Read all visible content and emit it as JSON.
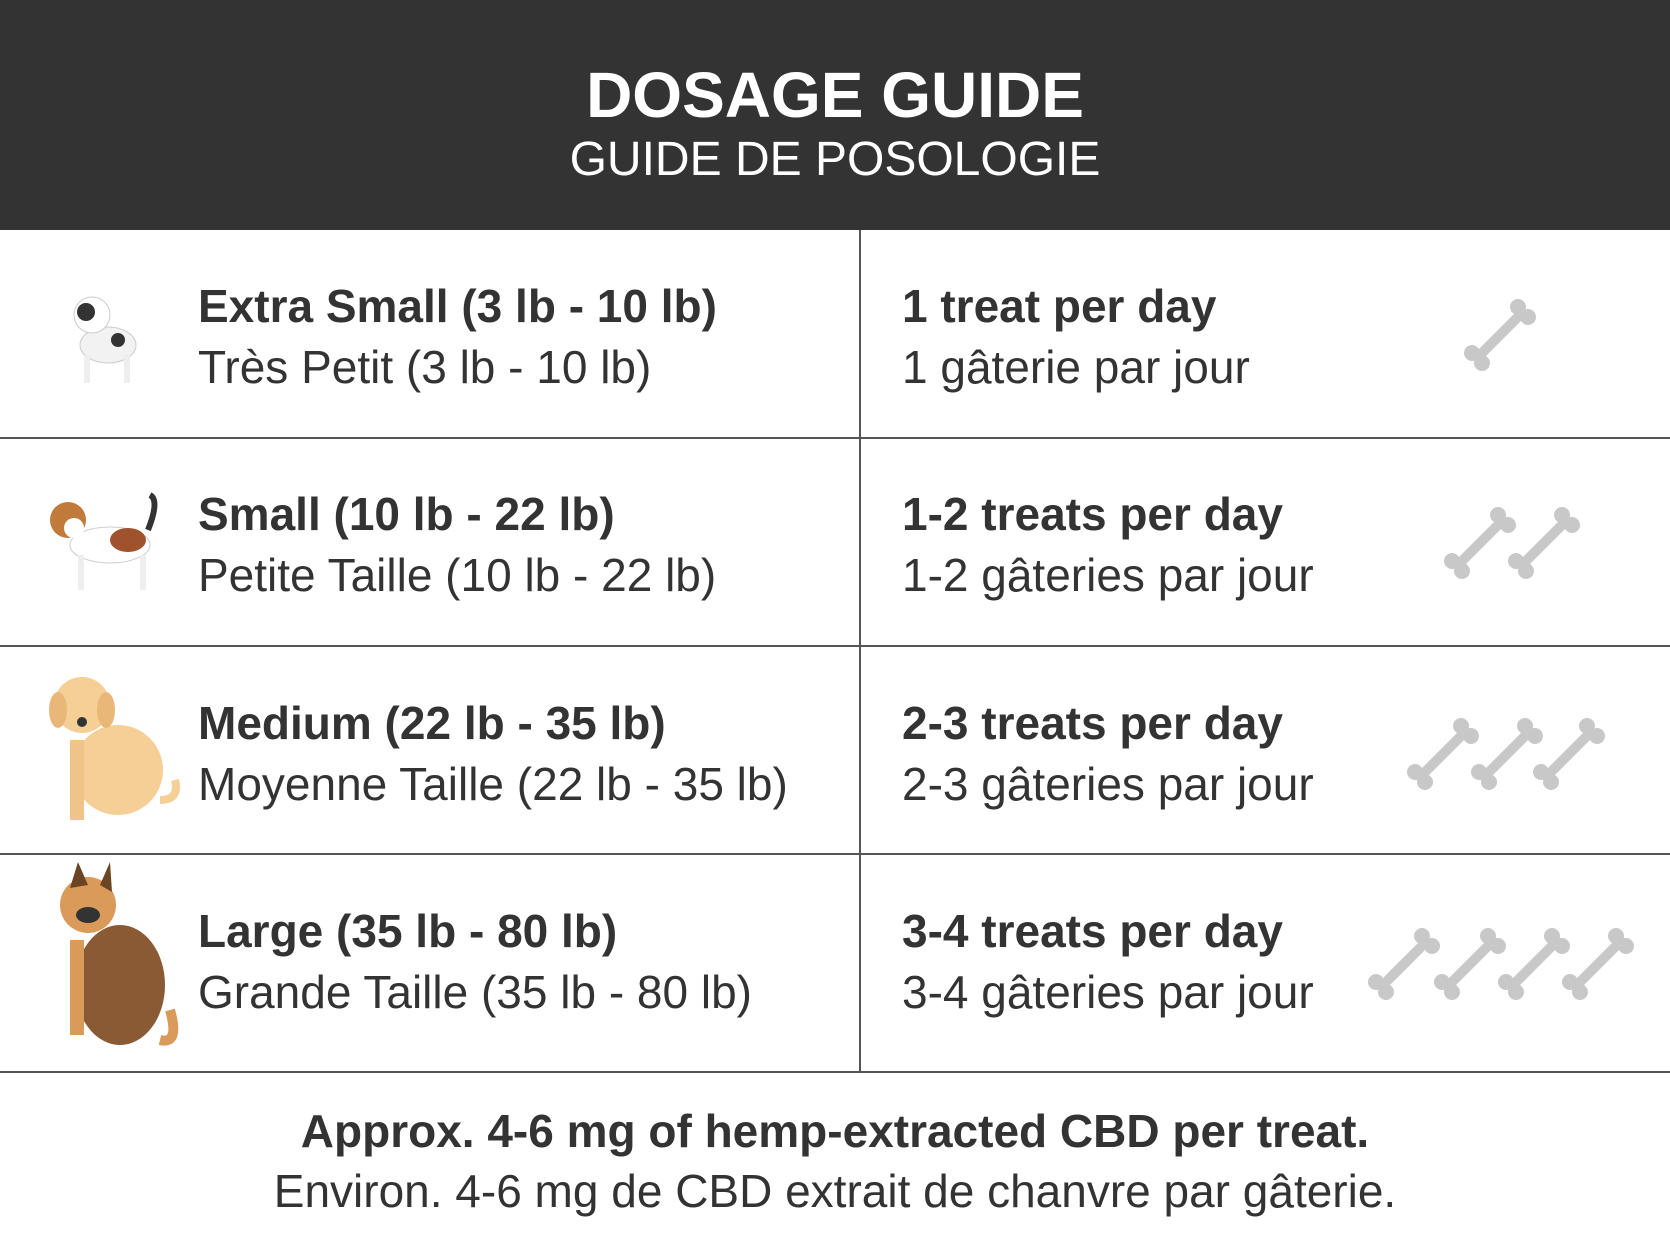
{
  "header": {
    "title": "DOSAGE GUIDE",
    "subtitle": "GUIDE DE POSOLOGIE"
  },
  "rows": [
    {
      "size_en": "Extra Small (3 lb - 10 lb)",
      "size_fr": "Très Petit (3 lb - 10 lb)",
      "dose_en": "1 treat per day",
      "dose_fr": "1 gâterie par jour"
    },
    {
      "size_en": "Small (10 lb - 22 lb)",
      "size_fr": "Petite Taille (10 lb - 22 lb)",
      "dose_en": "1-2 treats per day",
      "dose_fr": "1-2 gâteries par jour"
    },
    {
      "size_en": "Medium (22 lb - 35 lb)",
      "size_fr": "Moyenne Taille (22 lb - 35 lb)",
      "dose_en": "2-3 treats per day",
      "dose_fr": "2-3 gâteries par jour"
    },
    {
      "size_en": "Large (35 lb - 80 lb)",
      "size_fr": "Grande Taille (35 lb - 80 lb)",
      "dose_en": "3-4 treats per day",
      "dose_fr": "3-4 gâteries par jour"
    }
  ],
  "footer": {
    "en": "Approx. 4-6 mg of hemp-extracted CBD per treat.",
    "fr": "Environ. 4-6 mg de CBD extrait de chanvre par gâterie."
  }
}
